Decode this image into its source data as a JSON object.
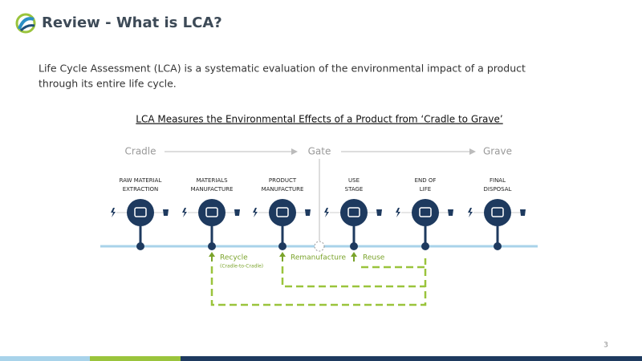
{
  "header": {
    "title": "Review - What is LCA?"
  },
  "intro": {
    "lines": [
      "Life Cycle Assessment (LCA) is a systematic evaluation of the environmental impact of a product",
      "through its entire life cycle."
    ]
  },
  "diagram": {
    "title": "LCA Measures the Environmental Effects of a Product from ‘Cradle to Grave’",
    "phases": [
      "Cradle",
      "Gate",
      "Grave"
    ],
    "stages": [
      {
        "lines": [
          "RAW MATERIAL",
          "EXTRACTION"
        ]
      },
      {
        "lines": [
          "MATERIALS",
          "MANUFACTURE"
        ]
      },
      {
        "lines": [
          "PRODUCT",
          "MANUFACTURE"
        ]
      },
      {
        "lines": [
          "USE",
          "STAGE"
        ]
      },
      {
        "lines": [
          "END OF",
          "LIFE"
        ]
      },
      {
        "lines": [
          "FINAL",
          "DISPOSAL"
        ]
      }
    ],
    "loops": [
      {
        "label": "Recycle",
        "note": "(Cradle-to-Cradle)"
      },
      {
        "label": "Remanufacture"
      },
      {
        "label": "Reuse"
      }
    ]
  },
  "footer": {
    "page": "3"
  }
}
